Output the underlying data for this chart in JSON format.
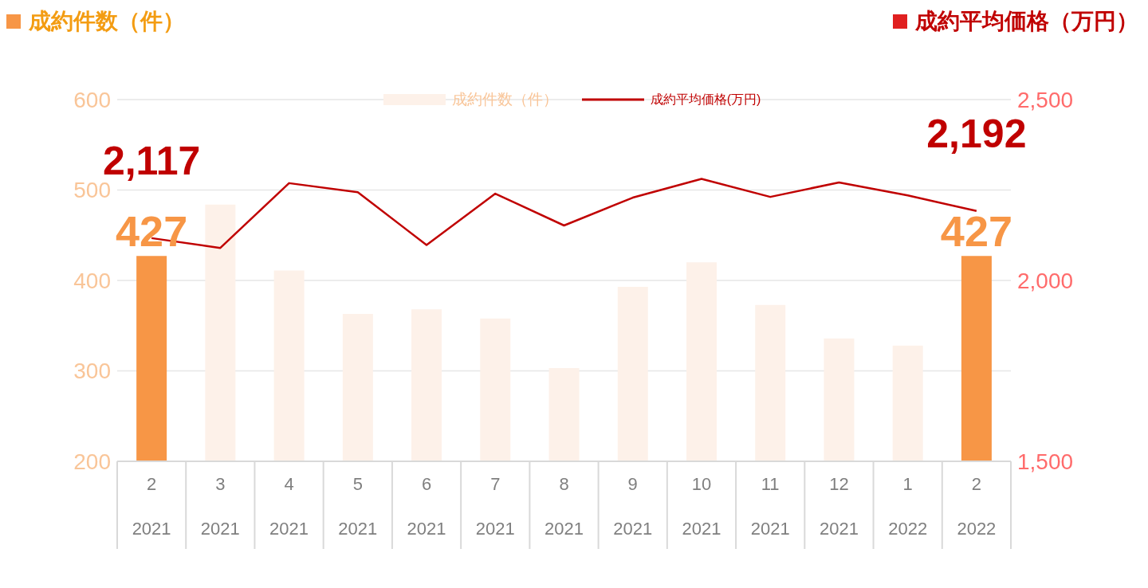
{
  "chart_data": {
    "type": "bar",
    "ylabel": "成約件数（件）",
    "y2label": "成約平均価格（万円）",
    "categories": [
      "2\n2021",
      "3\n2021",
      "4\n2021",
      "5\n2021",
      "6\n2021",
      "7\n2021",
      "8\n2021",
      "9\n2021",
      "10\n2021",
      "11\n2021",
      "12\n2021",
      "1\n2022",
      "2\n2022"
    ],
    "series": [
      {
        "name": "成約件数（件）",
        "colors": [
          "#f79646",
          "#fdf1e9",
          "#fdf1e9",
          "#fdf1e9",
          "#fdf1e9",
          "#fdf1e9",
          "#fdf1e9",
          "#fdf1e9",
          "#fdf1e9",
          "#fdf1e9",
          "#fdf1e9",
          "#fdf1e9",
          "#f79646"
        ],
        "values": [
          427,
          484,
          411,
          363,
          368,
          358,
          303,
          393,
          420,
          373,
          336,
          328,
          427
        ],
        "value_labels": [
          "427",
          null,
          null,
          null,
          null,
          null,
          null,
          null,
          null,
          null,
          null,
          null,
          "427"
        ]
      },
      {
        "name": "成約平均価格(万円)",
        "type": "line",
        "axis": "y2",
        "color": "#c00000",
        "values": [
          2117,
          2090,
          2269,
          2244,
          2098,
          2240,
          2152,
          2229,
          2281,
          2231,
          2271,
          2235,
          2192
        ],
        "value_labels": [
          "2,117",
          null,
          null,
          null,
          null,
          null,
          null,
          null,
          null,
          null,
          null,
          null,
          "2,192"
        ]
      }
    ],
    "ylim": [
      200,
      600
    ],
    "yticks": [
      200,
      300,
      400,
      500,
      600
    ],
    "y2lim": [
      1500,
      2500
    ],
    "y2ticks": [
      {
        "value": 1500,
        "label": "1,500"
      },
      {
        "value": 2000,
        "label": "2,000"
      },
      {
        "value": 2500,
        "label": "2,500"
      }
    ],
    "grid": "y",
    "legend": "top"
  }
}
